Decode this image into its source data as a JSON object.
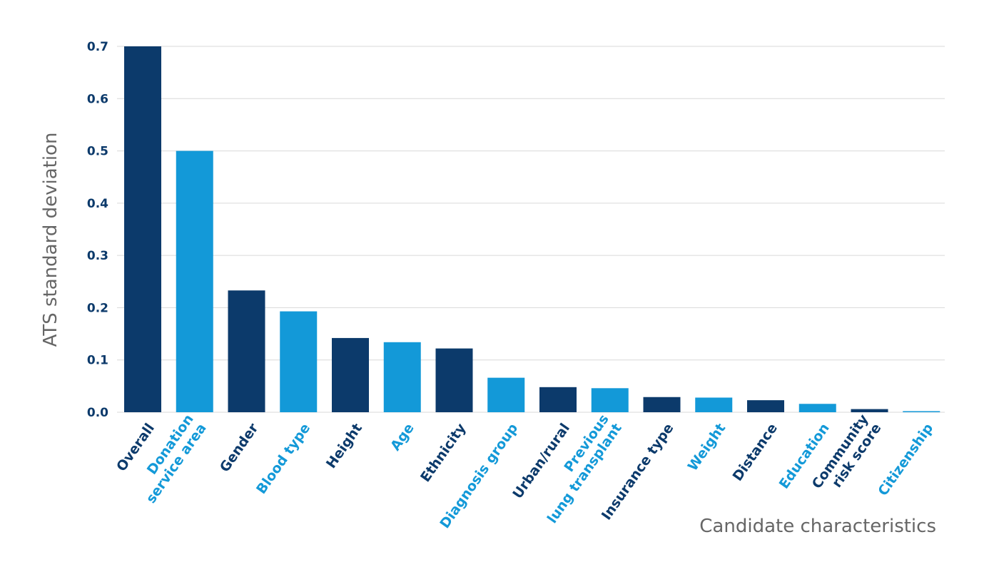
{
  "chart_data": {
    "type": "bar",
    "title": "",
    "xlabel": "Candidate characteristics",
    "ylabel": "ATS standard deviation",
    "ylim": [
      0,
      0.7
    ],
    "yticks": [
      "0.0",
      "0.1",
      "0.2",
      "0.3",
      "0.4",
      "0.5",
      "0.6",
      "0.7"
    ],
    "grid": true,
    "legend": "none",
    "colors": {
      "dark": "#0c3a6b",
      "light": "#1399d8"
    },
    "categories": [
      {
        "label": [
          "Overall"
        ],
        "value": 0.7,
        "color": "dark"
      },
      {
        "label": [
          "Donation",
          "service area"
        ],
        "value": 0.5,
        "color": "light"
      },
      {
        "label": [
          "Gender"
        ],
        "value": 0.233,
        "color": "dark"
      },
      {
        "label": [
          "Blood type"
        ],
        "value": 0.193,
        "color": "light"
      },
      {
        "label": [
          "Height"
        ],
        "value": 0.142,
        "color": "dark"
      },
      {
        "label": [
          "Age"
        ],
        "value": 0.134,
        "color": "light"
      },
      {
        "label": [
          "Ethnicity"
        ],
        "value": 0.122,
        "color": "dark"
      },
      {
        "label": [
          "Diagnosis group"
        ],
        "value": 0.066,
        "color": "light"
      },
      {
        "label": [
          "Urban/rural"
        ],
        "value": 0.048,
        "color": "dark"
      },
      {
        "label": [
          "Previous",
          "lung transplant"
        ],
        "value": 0.046,
        "color": "light"
      },
      {
        "label": [
          "Insurance type"
        ],
        "value": 0.029,
        "color": "dark"
      },
      {
        "label": [
          "Weight"
        ],
        "value": 0.028,
        "color": "light"
      },
      {
        "label": [
          "Distance"
        ],
        "value": 0.023,
        "color": "dark"
      },
      {
        "label": [
          "Education"
        ],
        "value": 0.016,
        "color": "light"
      },
      {
        "label": [
          "Community",
          "risk score"
        ],
        "value": 0.006,
        "color": "dark"
      },
      {
        "label": [
          "Citizenship"
        ],
        "value": 0.002,
        "color": "light"
      }
    ]
  }
}
